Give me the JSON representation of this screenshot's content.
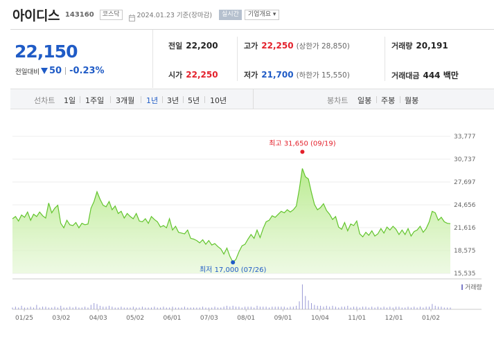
{
  "stock": {
    "name": "아이디스",
    "code": "143160",
    "market": "코스닥",
    "date_text": "2024.01.23 기준(장마감)",
    "realtime_label": "실시간",
    "corp_info_label": "기업개요 ▾"
  },
  "quote": {
    "price": "22,150",
    "change_label": "전일대비",
    "change_value": "50",
    "change_pct": "-0.23%",
    "prev_close_label": "전일",
    "prev_close": "22,200",
    "open_label": "시가",
    "open": "22,250",
    "high_label": "고가",
    "high": "22,250",
    "upper_limit": "(상한가 28,850)",
    "low_label": "저가",
    "low": "21,700",
    "lower_limit": "(하한가 15,550)",
    "volume_label": "거래량",
    "volume": "20,191",
    "amount_label": "거래대금",
    "amount": "444 백만"
  },
  "periods": {
    "label": "선차트",
    "items": [
      "1일",
      "1주일",
      "3개월",
      "1년",
      "3년",
      "5년",
      "10년"
    ],
    "selected": "1년"
  },
  "candles": {
    "label": "봉차트",
    "items": [
      "일봉",
      "주봉",
      "월봉"
    ]
  },
  "colors": {
    "price_down": "#1f5bc6",
    "price_up": "#e3202b",
    "line": "#62c42c",
    "area_top": "#b6ea8a",
    "volume_bar": "#9a9ad6"
  },
  "chart_data": {
    "type": "area",
    "title": "",
    "ylim": [
      15535,
      33777
    ],
    "y_ticks": [
      "33,777",
      "30,737",
      "27,697",
      "24,656",
      "21,616",
      "18,575",
      "15,535"
    ],
    "x_ticks": [
      "01/25",
      "03/02",
      "04/03",
      "05/02",
      "06/01",
      "07/03",
      "08/01",
      "09/01",
      "10/04",
      "11/01",
      "12/01",
      "01/02"
    ],
    "max_annotation": "최고 31,650 (09/19)",
    "min_annotation": "최저 17,000 (07/26)",
    "volume_legend": "거래량",
    "series": [
      {
        "values": [
          22800,
          23100,
          22500,
          23300,
          23000,
          23700,
          22600,
          23400,
          23100,
          23700,
          23200,
          22900,
          24900,
          23600,
          24200,
          24600,
          22200,
          21600,
          22600,
          22000,
          21900,
          22300,
          21600,
          22200,
          22000,
          22100,
          24200,
          25100,
          26400,
          25400,
          24600,
          24400,
          25100,
          24000,
          24500,
          23500,
          23800,
          22900,
          23500,
          23100,
          22800,
          23500,
          22500,
          22400,
          22800,
          22200,
          23100,
          22700,
          22400,
          21700,
          21900,
          21600,
          22800,
          21300,
          21800,
          21000,
          20900,
          20800,
          21300,
          20200,
          20100,
          19900,
          19600,
          20000,
          19400,
          19900,
          19300,
          19500,
          19100,
          18800,
          18100,
          18900,
          17800,
          17000,
          17400,
          18400,
          19200,
          19400,
          20100,
          20700,
          20200,
          21300,
          20300,
          21500,
          22400,
          22600,
          23200,
          23000,
          23400,
          23800,
          23600,
          24000,
          23700,
          24000,
          24500,
          26800,
          29500,
          28400,
          28100,
          26300,
          24700,
          24000,
          24300,
          24800,
          23900,
          23400,
          22700,
          23100,
          21700,
          21400,
          22300,
          21200,
          22100,
          21900,
          22500,
          20800,
          20400,
          21000,
          20600,
          21200,
          20500,
          20800,
          21500,
          20900,
          21700,
          21300,
          21800,
          21400,
          20700,
          21300,
          20700,
          21500,
          20500,
          21100,
          21300,
          21800,
          21000,
          21500,
          22400,
          23800,
          23600,
          22600,
          23000,
          22400,
          22200,
          22150
        ],
        "volume": [
          2,
          3,
          2,
          4,
          2,
          2,
          3,
          2,
          5,
          2,
          3,
          3,
          2,
          2,
          3,
          2,
          4,
          2,
          2,
          3,
          2,
          3,
          2,
          2,
          3,
          2,
          5,
          7,
          6,
          4,
          3,
          3,
          4,
          3,
          2,
          2,
          3,
          2,
          2,
          2,
          3,
          2,
          2,
          3,
          2,
          2,
          2,
          3,
          2,
          2,
          3,
          2,
          2,
          3,
          2,
          2,
          2,
          3,
          2,
          2,
          2,
          2,
          2,
          3,
          2,
          2,
          2,
          3,
          2,
          2,
          3,
          4,
          3,
          4,
          3,
          3,
          2,
          3,
          3,
          3,
          2,
          4,
          3,
          3,
          3,
          2,
          3,
          3,
          3,
          3,
          3,
          2,
          3,
          3,
          4,
          9,
          28,
          15,
          10,
          7,
          5,
          4,
          4,
          3,
          4,
          3,
          4,
          3,
          2,
          3,
          3,
          4,
          2,
          3,
          3,
          2,
          3,
          3,
          2,
          3,
          2,
          3,
          2,
          3,
          2,
          3,
          2,
          3,
          3,
          2,
          2,
          3,
          2,
          3,
          2,
          3,
          2,
          3,
          3,
          6,
          4,
          3,
          3,
          2,
          2,
          2
        ]
      }
    ]
  }
}
